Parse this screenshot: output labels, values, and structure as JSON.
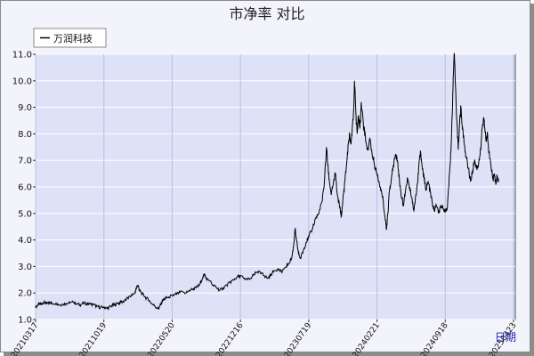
{
  "chart_data": {
    "type": "line",
    "title": "市净率  对比",
    "xlabel": "日期",
    "ylabel": "",
    "ylim": [
      1.0,
      11.0
    ],
    "yticks": [
      "1.0",
      "2.0",
      "3.0",
      "4.0",
      "5.0",
      "6.0",
      "7.0",
      "8.0",
      "9.0",
      "10.0",
      "11.0"
    ],
    "xticks": [
      "20210317",
      "20211019",
      "20220520",
      "20221216",
      "20230719",
      "20240221",
      "20240918",
      "20250423"
    ],
    "grid": true,
    "legend_position": "top-left",
    "series": [
      {
        "name": "万润科技",
        "color": "#000000",
        "points": [
          [
            0,
            1.45
          ],
          [
            0.03,
            1.55
          ],
          [
            0.06,
            1.6
          ],
          [
            0.09,
            1.58
          ],
          [
            0.12,
            1.65
          ],
          [
            0.15,
            1.6
          ],
          [
            0.18,
            1.62
          ],
          [
            0.21,
            1.65
          ],
          [
            0.25,
            1.6
          ],
          [
            0.3,
            1.62
          ],
          [
            0.35,
            1.55
          ],
          [
            0.4,
            1.58
          ],
          [
            0.45,
            1.6
          ],
          [
            0.5,
            1.62
          ],
          [
            0.55,
            1.65
          ],
          [
            0.6,
            1.6
          ],
          [
            0.65,
            1.55
          ],
          [
            0.7,
            1.62
          ],
          [
            0.75,
            1.6
          ],
          [
            0.8,
            1.58
          ],
          [
            0.85,
            1.55
          ],
          [
            0.9,
            1.5
          ],
          [
            0.95,
            1.45
          ],
          [
            1.0,
            1.48
          ],
          [
            1.05,
            1.42
          ],
          [
            1.1,
            1.5
          ],
          [
            1.15,
            1.55
          ],
          [
            1.2,
            1.6
          ],
          [
            1.25,
            1.65
          ],
          [
            1.3,
            1.7
          ],
          [
            1.35,
            1.8
          ],
          [
            1.4,
            1.9
          ],
          [
            1.45,
            2.0
          ],
          [
            1.48,
            2.2
          ],
          [
            1.5,
            2.3
          ],
          [
            1.52,
            2.1
          ],
          [
            1.55,
            2.0
          ],
          [
            1.6,
            1.85
          ],
          [
            1.65,
            1.75
          ],
          [
            1.7,
            1.6
          ],
          [
            1.75,
            1.5
          ],
          [
            1.8,
            1.4
          ],
          [
            1.83,
            1.55
          ],
          [
            1.86,
            1.7
          ],
          [
            1.9,
            1.8
          ],
          [
            1.95,
            1.85
          ],
          [
            2.0,
            1.9
          ],
          [
            2.05,
            1.95
          ],
          [
            2.1,
            2.0
          ],
          [
            2.15,
            2.05
          ],
          [
            2.2,
            2.0
          ],
          [
            2.25,
            2.1
          ],
          [
            2.3,
            2.15
          ],
          [
            2.35,
            2.2
          ],
          [
            2.4,
            2.3
          ],
          [
            2.45,
            2.6
          ],
          [
            2.48,
            2.7
          ],
          [
            2.5,
            2.55
          ],
          [
            2.55,
            2.45
          ],
          [
            2.6,
            2.3
          ],
          [
            2.65,
            2.2
          ],
          [
            2.7,
            2.1
          ],
          [
            2.75,
            2.2
          ],
          [
            2.8,
            2.3
          ],
          [
            2.85,
            2.4
          ],
          [
            2.9,
            2.5
          ],
          [
            2.95,
            2.6
          ],
          [
            3.0,
            2.65
          ],
          [
            3.05,
            2.55
          ],
          [
            3.1,
            2.5
          ],
          [
            3.15,
            2.55
          ],
          [
            3.2,
            2.7
          ],
          [
            3.25,
            2.8
          ],
          [
            3.3,
            2.75
          ],
          [
            3.35,
            2.65
          ],
          [
            3.4,
            2.55
          ],
          [
            3.45,
            2.7
          ],
          [
            3.5,
            2.85
          ],
          [
            3.55,
            2.9
          ],
          [
            3.6,
            2.8
          ],
          [
            3.65,
            2.95
          ],
          [
            3.7,
            3.1
          ],
          [
            3.75,
            3.3
          ],
          [
            3.78,
            3.8
          ],
          [
            3.8,
            4.4
          ],
          [
            3.82,
            4.0
          ],
          [
            3.85,
            3.5
          ],
          [
            3.88,
            3.3
          ],
          [
            3.92,
            3.6
          ],
          [
            3.96,
            3.9
          ],
          [
            4.0,
            4.1
          ],
          [
            4.05,
            4.4
          ],
          [
            4.1,
            4.8
          ],
          [
            4.15,
            5.0
          ],
          [
            4.2,
            5.5
          ],
          [
            4.23,
            6.2
          ],
          [
            4.26,
            7.5
          ],
          [
            4.28,
            6.8
          ],
          [
            4.3,
            6.3
          ],
          [
            4.33,
            5.7
          ],
          [
            4.36,
            6.1
          ],
          [
            4.39,
            6.5
          ],
          [
            4.42,
            5.7
          ],
          [
            4.45,
            5.3
          ],
          [
            4.48,
            4.9
          ],
          [
            4.5,
            5.5
          ],
          [
            4.53,
            6.2
          ],
          [
            4.56,
            7.0
          ],
          [
            4.58,
            7.6
          ],
          [
            4.6,
            8.0
          ],
          [
            4.62,
            7.6
          ],
          [
            4.64,
            8.3
          ],
          [
            4.66,
            9.0
          ],
          [
            4.67,
            10.0
          ],
          [
            4.69,
            8.8
          ],
          [
            4.71,
            8.0
          ],
          [
            4.73,
            8.7
          ],
          [
            4.75,
            8.2
          ],
          [
            4.77,
            9.2
          ],
          [
            4.8,
            8.4
          ],
          [
            4.83,
            7.9
          ],
          [
            4.86,
            7.4
          ],
          [
            4.9,
            7.8
          ],
          [
            4.93,
            7.2
          ],
          [
            4.96,
            6.9
          ],
          [
            5.0,
            6.5
          ],
          [
            5.03,
            6.2
          ],
          [
            5.06,
            5.9
          ],
          [
            5.09,
            5.5
          ],
          [
            5.11,
            5.0
          ],
          [
            5.13,
            4.6
          ],
          [
            5.14,
            4.4
          ],
          [
            5.16,
            5.0
          ],
          [
            5.18,
            5.8
          ],
          [
            5.21,
            6.3
          ],
          [
            5.24,
            6.8
          ],
          [
            5.27,
            7.2
          ],
          [
            5.3,
            7.0
          ],
          [
            5.33,
            6.2
          ],
          [
            5.36,
            5.6
          ],
          [
            5.39,
            5.3
          ],
          [
            5.42,
            5.9
          ],
          [
            5.45,
            6.3
          ],
          [
            5.48,
            6.0
          ],
          [
            5.51,
            5.6
          ],
          [
            5.54,
            5.1
          ],
          [
            5.57,
            5.7
          ],
          [
            5.6,
            6.3
          ],
          [
            5.62,
            7.0
          ],
          [
            5.64,
            7.3
          ],
          [
            5.66,
            6.8
          ],
          [
            5.69,
            6.3
          ],
          [
            5.72,
            5.9
          ],
          [
            5.75,
            6.2
          ],
          [
            5.78,
            5.8
          ],
          [
            5.81,
            5.4
          ],
          [
            5.84,
            5.1
          ],
          [
            5.87,
            5.3
          ],
          [
            5.9,
            5.0
          ],
          [
            5.93,
            5.2
          ],
          [
            5.96,
            5.3
          ],
          [
            6.0,
            5.1
          ],
          [
            6.03,
            5.2
          ],
          [
            6.05,
            6.0
          ],
          [
            6.07,
            6.8
          ],
          [
            6.09,
            7.8
          ],
          [
            6.11,
            9.5
          ],
          [
            6.13,
            11.0
          ],
          [
            6.15,
            9.8
          ],
          [
            6.17,
            8.5
          ],
          [
            6.19,
            7.4
          ],
          [
            6.21,
            8.4
          ],
          [
            6.23,
            9.0
          ],
          [
            6.25,
            8.2
          ],
          [
            6.28,
            7.6
          ],
          [
            6.31,
            7.1
          ],
          [
            6.34,
            6.7
          ],
          [
            6.37,
            6.2
          ],
          [
            6.4,
            6.6
          ],
          [
            6.43,
            7.0
          ],
          [
            6.46,
            6.7
          ],
          [
            6.49,
            6.9
          ],
          [
            6.52,
            7.4
          ],
          [
            6.54,
            8.2
          ],
          [
            6.56,
            8.6
          ],
          [
            6.58,
            8.2
          ],
          [
            6.6,
            7.7
          ],
          [
            6.62,
            8.0
          ],
          [
            6.64,
            7.3
          ],
          [
            6.67,
            6.8
          ],
          [
            6.7,
            6.3
          ],
          [
            6.72,
            6.5
          ],
          [
            6.74,
            6.1
          ],
          [
            6.76,
            6.4
          ],
          [
            6.78,
            6.2
          ]
        ]
      }
    ]
  }
}
